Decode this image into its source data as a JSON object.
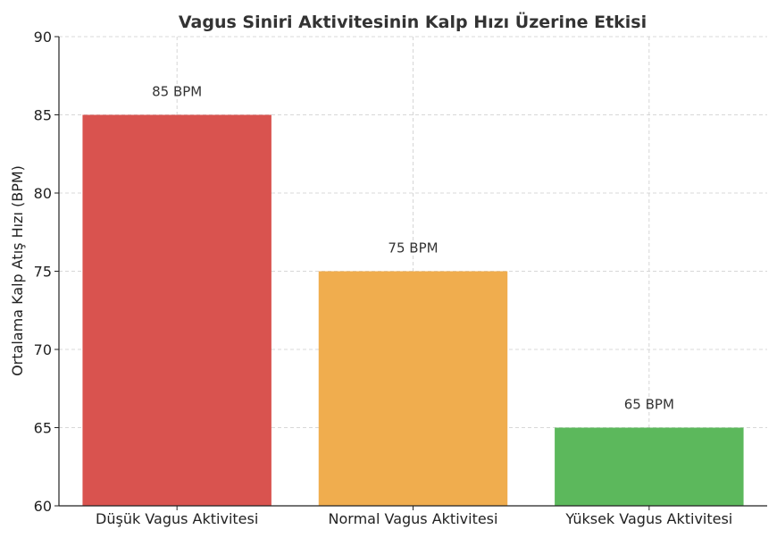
{
  "chart_data": {
    "type": "bar",
    "title": "Vagus Siniri Aktivitesinin Kalp Hızı Üzerine Etkisi",
    "xlabel": "",
    "ylabel": "Ortalama Kalp Atış Hızı (BPM)",
    "ylim": [
      60,
      90
    ],
    "yticks": [
      "60",
      "65",
      "70",
      "75",
      "80",
      "85",
      "90"
    ],
    "categories": [
      "Düşük Vagus Aktivitesi",
      "Normal Vagus Aktivitesi",
      "Yüksek Vagus Aktivitesi"
    ],
    "values": [
      85,
      75,
      65
    ],
    "data_labels": [
      "85 BPM",
      "75 BPM",
      "65 BPM"
    ],
    "colors": [
      "#d9534f",
      "#f0ad4e",
      "#5cb85c"
    ],
    "grid": true,
    "legend": "none"
  }
}
